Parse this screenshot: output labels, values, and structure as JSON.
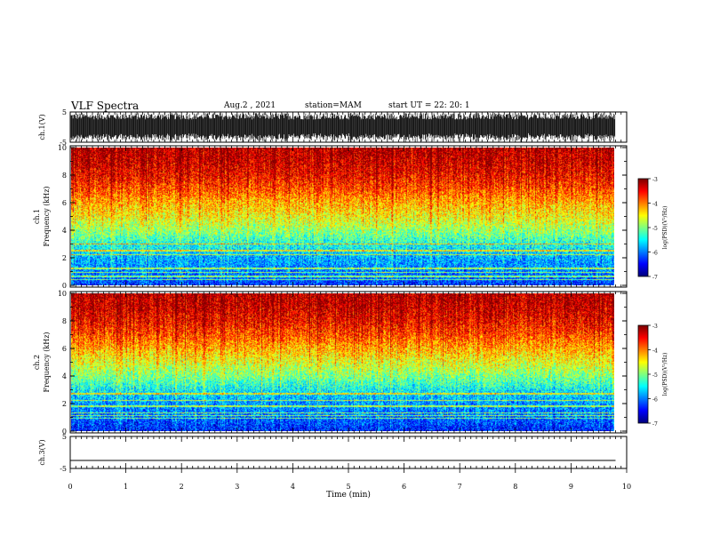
{
  "header": {
    "title": "VLF Spectra",
    "date": "Aug.2 , 2021",
    "station": "station=MAM",
    "start_ut": "start UT = 22: 20: 1"
  },
  "chart_data": [
    {
      "type": "line",
      "panel": "ch1-waveform",
      "ylabel": "ch.1(V)",
      "ylim": [
        -5,
        5
      ],
      "yticks": [
        "5",
        "-5"
      ],
      "xlim": [
        0,
        10
      ],
      "description_values": "dense broadband noise, roughly -4.5 to 4.5 V over the full record (0 to 9.8 min)"
    },
    {
      "type": "heatmap",
      "panel": "ch1-spectrogram",
      "ylabel": "ch.1 Frequency (kHz)",
      "ylim": [
        0,
        10
      ],
      "yticks": [
        "0",
        "2",
        "4",
        "6",
        "8",
        "10"
      ],
      "xlim": [
        0,
        10
      ],
      "x_end_min": 9.8,
      "colorbar": {
        "label": "log(PSD)(V²/Hz)",
        "range": [
          -7,
          -3
        ],
        "ticks": [
          "-3",
          "-4",
          "-5",
          "-6",
          "-7"
        ]
      },
      "freq_profile_kHz": [
        0,
        1,
        2,
        3,
        4,
        5,
        6,
        7,
        8,
        9,
        10
      ],
      "log_psd_profile": [
        -6.3,
        -6.0,
        -5.8,
        -5.4,
        -4.9,
        -4.5,
        -4.2,
        -3.8,
        -3.5,
        -3.3,
        -3.2
      ],
      "narrowband_lines_kHz": [
        0.4,
        0.6,
        0.9,
        1.2,
        2.2,
        2.5,
        3.0
      ]
    },
    {
      "type": "heatmap",
      "panel": "ch2-spectrogram",
      "ylabel": "ch.2 Frequency (kHz)",
      "ylim": [
        0,
        10
      ],
      "yticks": [
        "0",
        "2",
        "4",
        "6",
        "8",
        "10"
      ],
      "xlim": [
        0,
        10
      ],
      "x_end_min": 9.8,
      "colorbar": {
        "label": "log(PSD)(V²/Hz)",
        "range": [
          -7,
          -3
        ],
        "ticks": [
          "-3",
          "-4",
          "-5",
          "-6",
          "-7"
        ]
      },
      "freq_profile_kHz": [
        0,
        1,
        2,
        3,
        4,
        5,
        6,
        7,
        8,
        9,
        10
      ],
      "log_psd_profile": [
        -6.4,
        -6.1,
        -5.9,
        -5.5,
        -5.0,
        -4.6,
        -4.2,
        -3.8,
        -3.5,
        -3.3,
        -3.2
      ],
      "narrowband_lines_kHz": [
        0.9,
        1.1,
        1.3,
        1.8,
        2.2,
        2.7
      ]
    },
    {
      "type": "line",
      "panel": "ch3-waveform",
      "ylabel": "ch.3(V)",
      "ylim": [
        -5,
        5
      ],
      "yticks": [
        "5",
        "-5"
      ],
      "xlim": [
        0,
        10
      ],
      "values": [
        -2.5,
        -2.5
      ],
      "x": [
        0,
        9.8
      ]
    }
  ],
  "xaxis": {
    "label": "Time (min)",
    "ticks": [
      "0",
      "1",
      "2",
      "3",
      "4",
      "5",
      "6",
      "7",
      "8",
      "9",
      "10"
    ]
  }
}
